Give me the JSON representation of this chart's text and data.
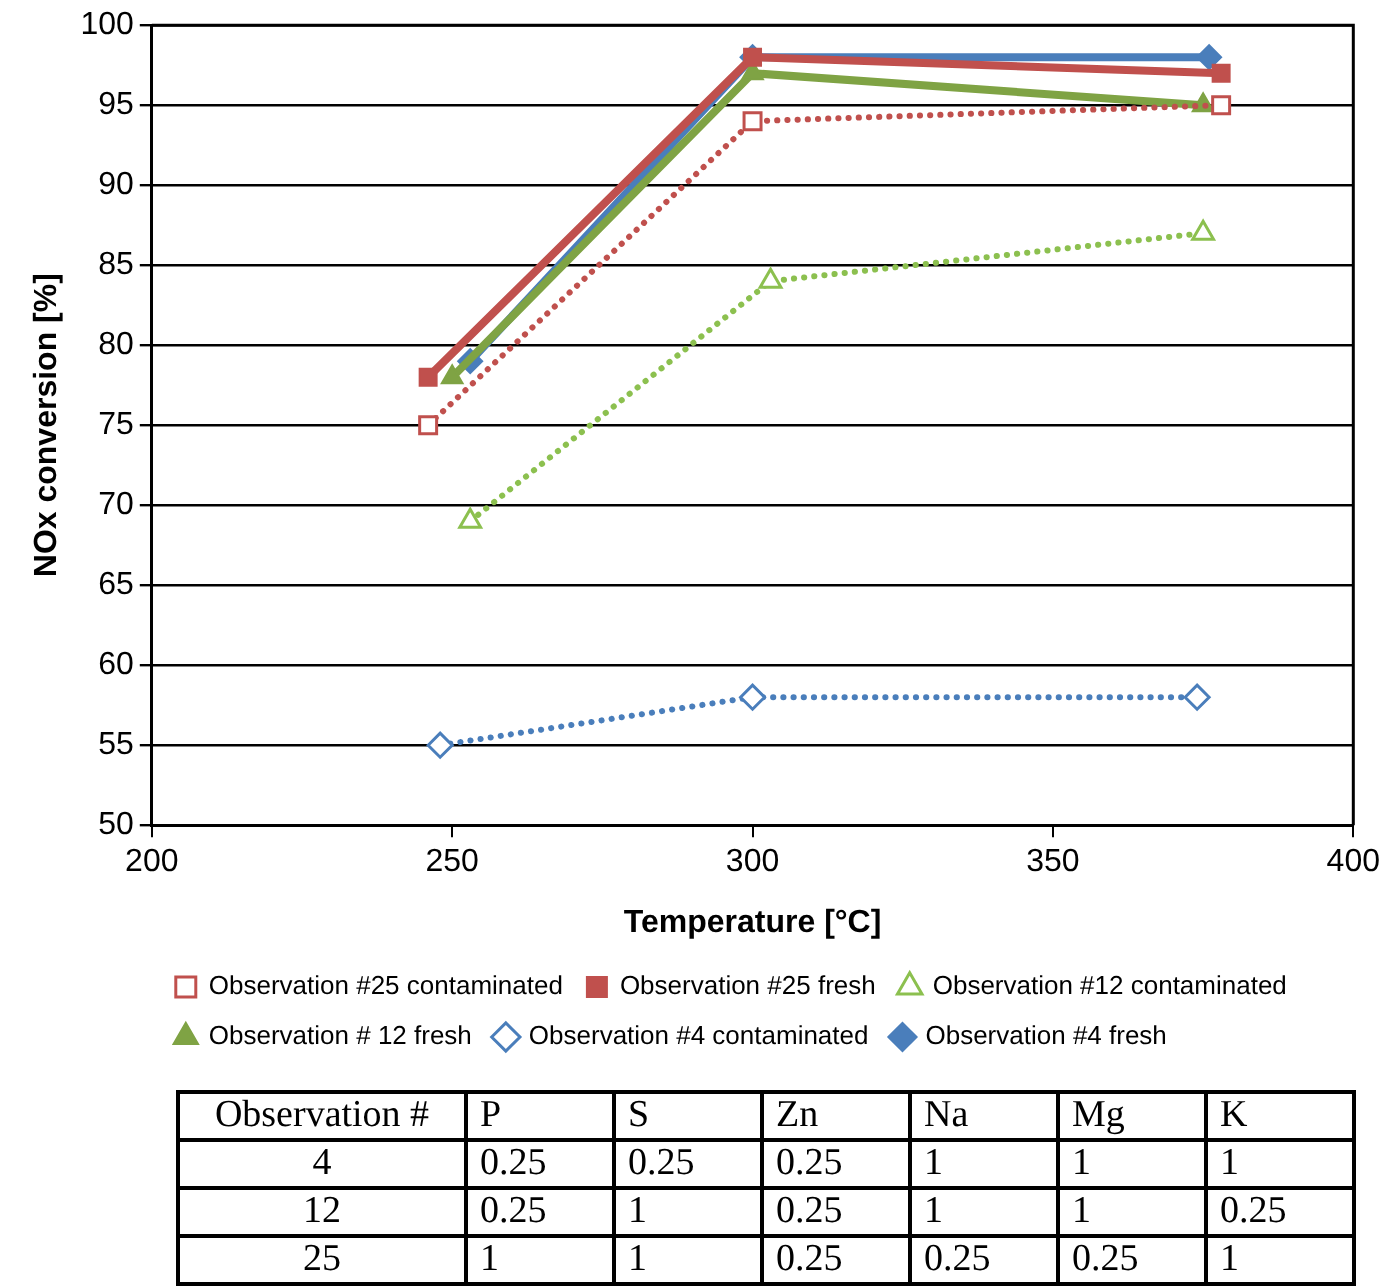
{
  "chart_data": [
    {
      "type": "line",
      "xlabel": "Temperature [°C]",
      "ylabel": "NOx conversion [%]",
      "xlim": [
        200,
        400
      ],
      "xticks": [
        200,
        250,
        300,
        350,
        400
      ],
      "ylim": [
        50,
        100
      ],
      "yticks": [
        50,
        55,
        60,
        65,
        70,
        75,
        80,
        85,
        90,
        95,
        100
      ],
      "grid": "y",
      "legend": "bottom",
      "series": [
        {
          "name": "Observation #4 fresh",
          "color": "#4a7ebb",
          "marker": "diamond",
          "line_style": "solid",
          "x": [
            253,
            300,
            376
          ],
          "values": [
            79,
            98,
            98
          ]
        },
        {
          "name": "Observation #4 contaminated",
          "color": "#4a7ebb",
          "marker": "diamond",
          "line_style": "dotted",
          "x": [
            248,
            300,
            374
          ],
          "values": [
            55,
            58,
            58
          ]
        },
        {
          "name": "Observation # 12 fresh",
          "color": "#7fa344",
          "marker": "triangle",
          "line_style": "solid",
          "x": [
            250,
            300,
            375
          ],
          "values": [
            78,
            97,
            95
          ]
        },
        {
          "name": "Observation #12 contaminated",
          "color": "#8cc04f",
          "marker": "triangle",
          "line_style": "dotted",
          "x": [
            253,
            303,
            375
          ],
          "values": [
            69,
            84,
            87
          ]
        },
        {
          "name": "Observation #25 fresh",
          "color": "#c0504d",
          "marker": "square",
          "line_style": "solid",
          "x": [
            246,
            300,
            378
          ],
          "values": [
            78,
            98,
            97
          ]
        },
        {
          "name": "Observation #25 contaminated",
          "color": "#c0504d",
          "marker": "square",
          "line_style": "dotted",
          "x": [
            246,
            300,
            378
          ],
          "values": [
            75,
            94,
            95
          ]
        }
      ]
    },
    {
      "type": "other",
      "categories": [
        "Observation #",
        "P",
        "S",
        "Zn",
        "Na",
        "Mg",
        "K"
      ],
      "annotations": [
        "4",
        "0.25",
        "0.25",
        "0.25",
        "1",
        "1",
        "1",
        "12",
        "0.25",
        "1",
        "0.25",
        "1",
        "1",
        "0.25",
        "25",
        "1",
        "1",
        "0.25",
        "0.25",
        "0.25",
        "1"
      ]
    }
  ]
}
